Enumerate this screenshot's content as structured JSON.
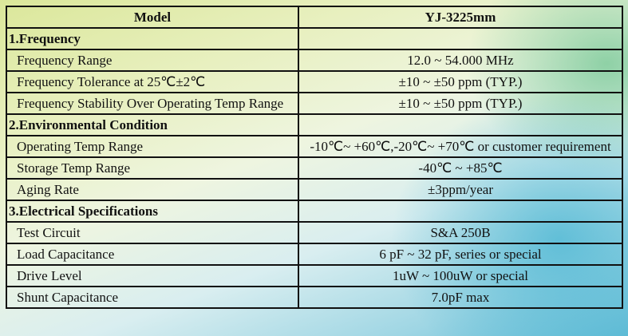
{
  "header": {
    "model_label": "Model",
    "model_value": "YJ-3225mm"
  },
  "sections": [
    {
      "title": "1.Frequency",
      "rows": [
        {
          "label": "Frequency Range",
          "value": "12.0 ~ 54.000 MHz"
        },
        {
          "label": "Frequency Tolerance at 25℃±2℃",
          "value": "±10 ~ ±50 ppm (TYP.)"
        },
        {
          "label": "Frequency Stability Over Operating Temp Range",
          "value": "±10 ~  ±50 ppm (TYP.)"
        }
      ]
    },
    {
      "title": "2.Environmental Condition",
      "rows": [
        {
          "label": "Operating Temp Range",
          "value": "-10℃~ +60℃,-20℃~ +70℃ or customer requirement"
        },
        {
          "label": "Storage Temp Range",
          "value": "-40℃ ~ +85℃"
        },
        {
          "label": "Aging Rate",
          "value": "±3ppm/year"
        }
      ]
    },
    {
      "title": "3.Electrical Specifications",
      "rows": [
        {
          "label": "Test Circuit",
          "value": "S&A 250B"
        },
        {
          "label": "Load Capacitance",
          "value": "6 pF ~ 32 pF, series or special"
        },
        {
          "label": "Drive Level",
          "value": "1uW ~ 100uW or special"
        },
        {
          "label": "Shunt Capacitance",
          "value": "7.0pF max"
        }
      ]
    }
  ]
}
